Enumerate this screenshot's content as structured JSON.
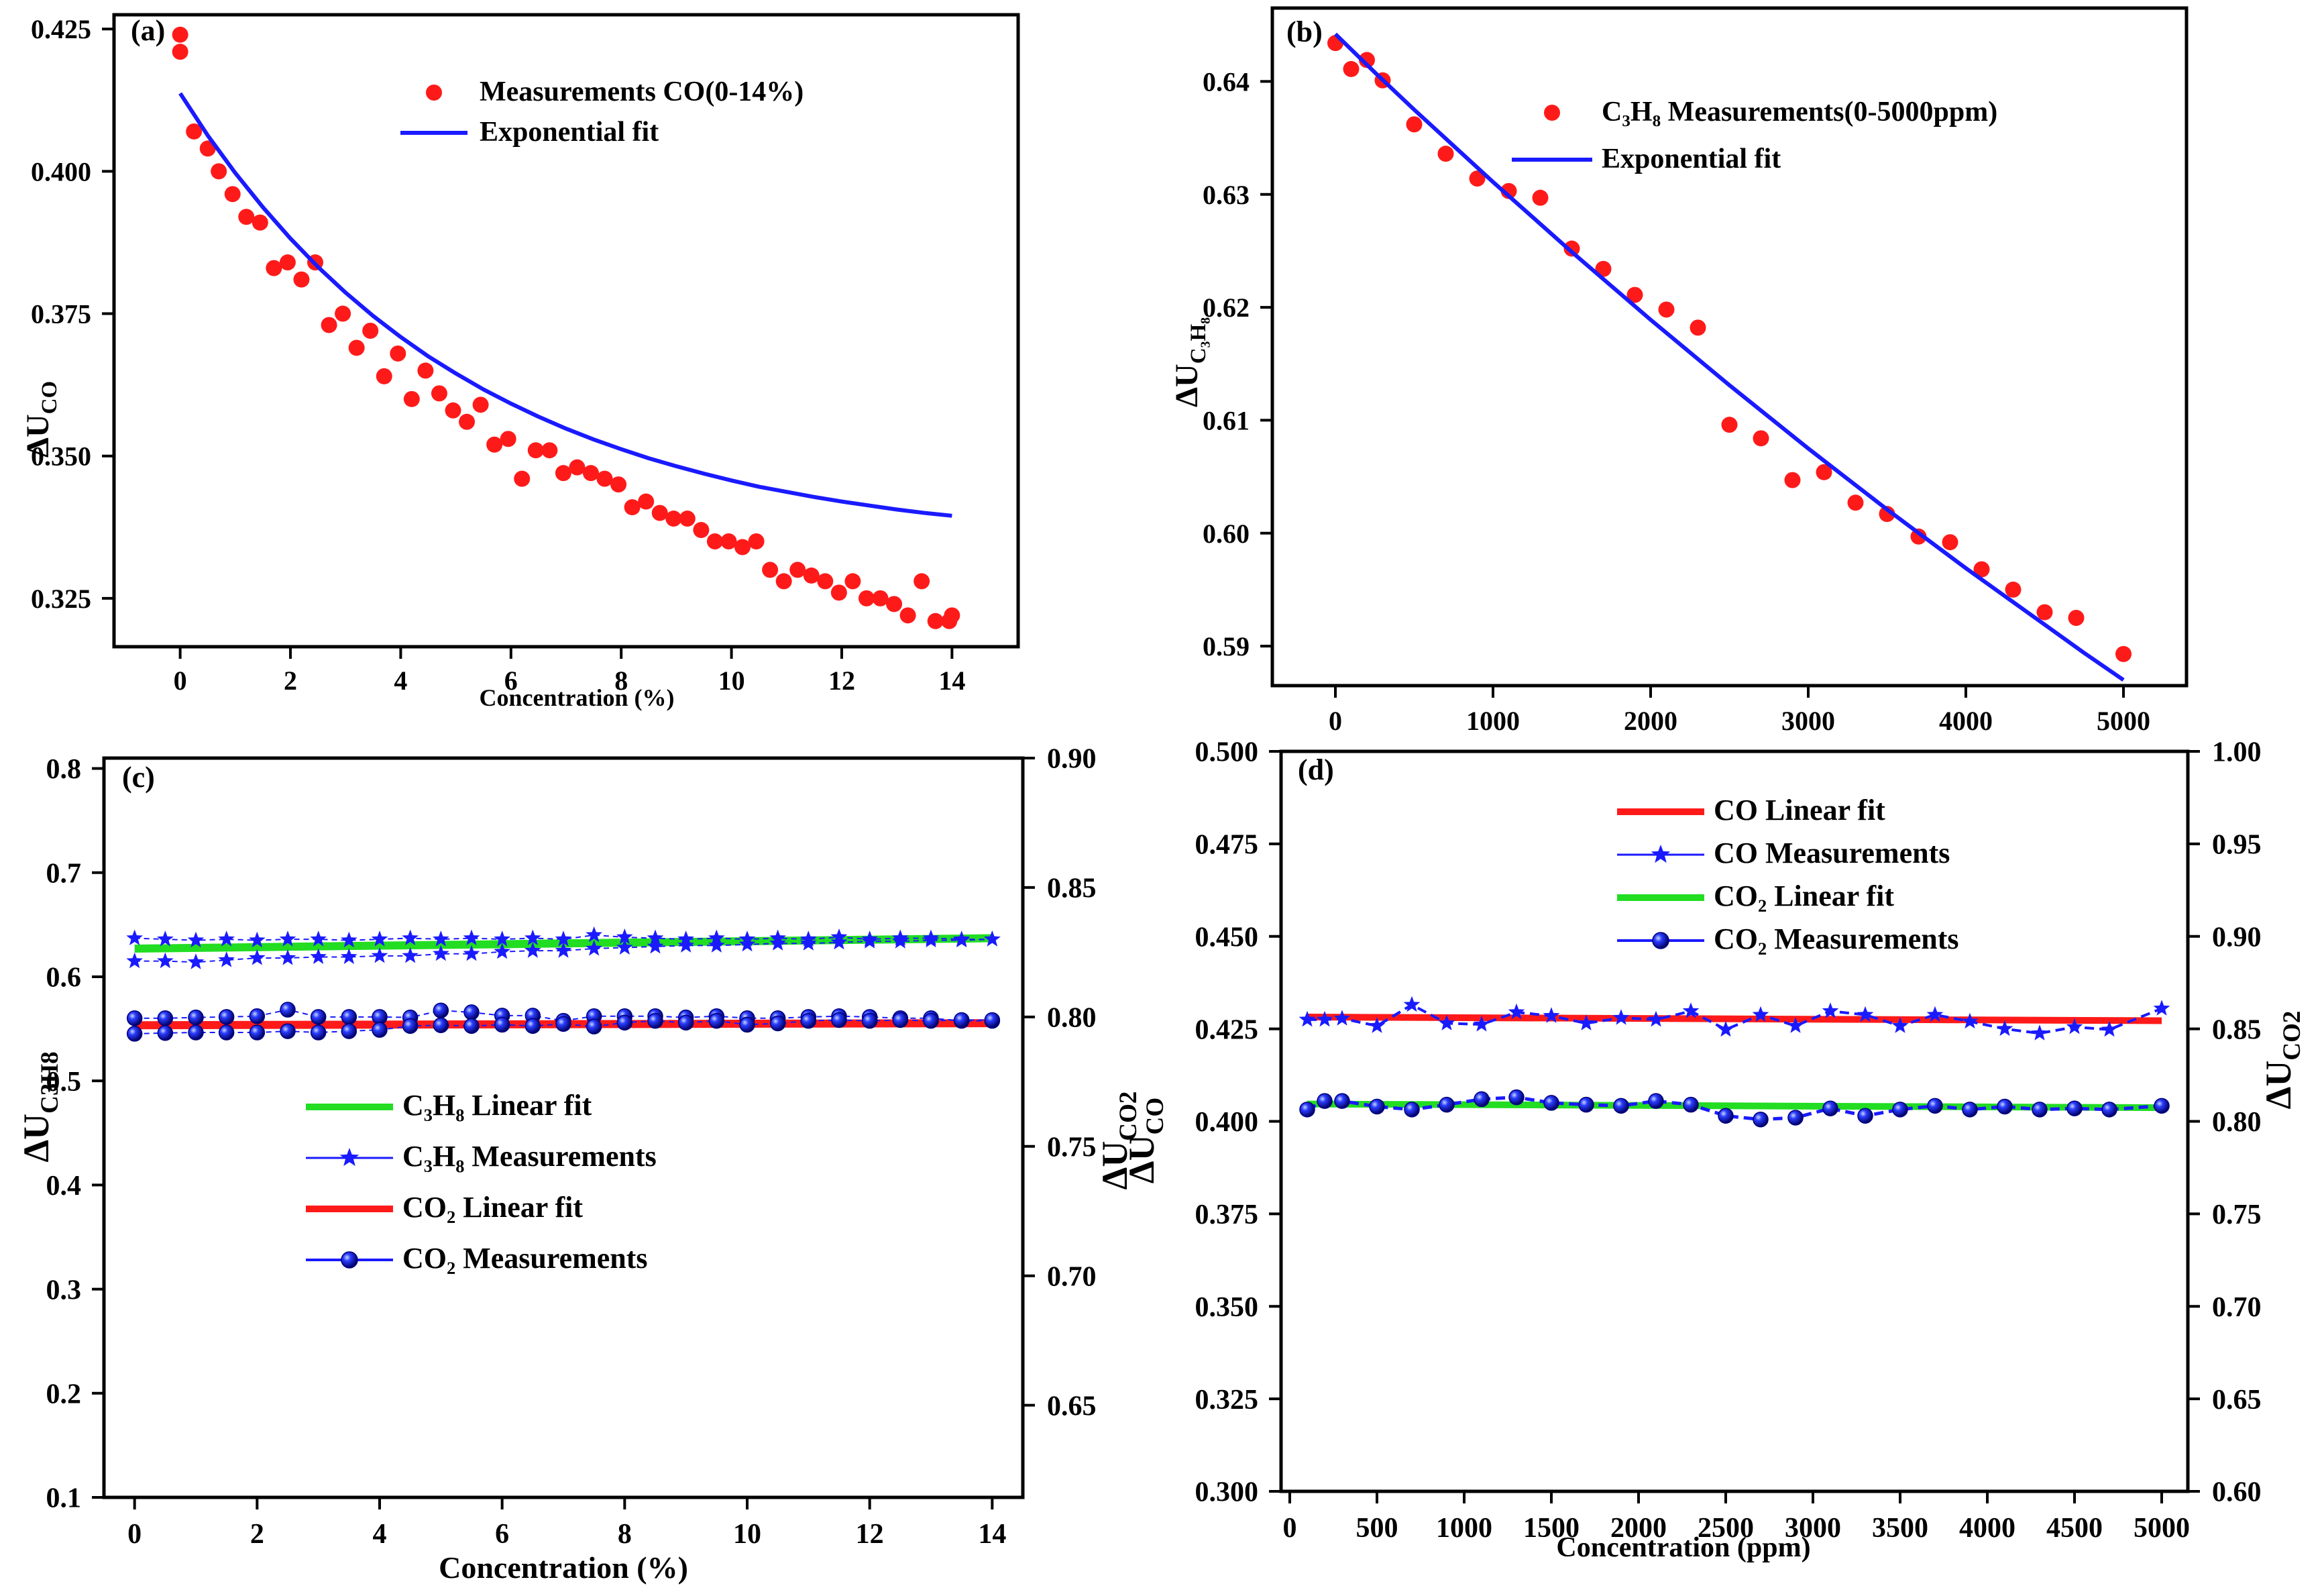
{
  "colors": {
    "red": "#ff1a1a",
    "blue": "#1a1aff",
    "green": "#22dd22",
    "navy": "#0000cc"
  },
  "chart_data": [
    {
      "panel": "(a)",
      "type": "scatter",
      "xlabel": "Concentration (%)",
      "ylabel": "ΔU",
      "ylabel_sub": "CO",
      "xlim": [
        -1.2,
        15.2
      ],
      "ylim": [
        0.3165,
        0.4275
      ],
      "xticks": [
        0,
        2,
        4,
        6,
        8,
        10,
        12,
        14
      ],
      "yticks": [
        0.325,
        0.35,
        0.375,
        0.4,
        0.425
      ],
      "ytick_labels": [
        "0.325",
        "0.350",
        "0.375",
        "0.400",
        "0.425"
      ],
      "legend": [
        {
          "label": "Measurements CO(0-14%)",
          "kind": "dot",
          "color": "#ff1a1a"
        },
        {
          "label": "Exponential fit",
          "kind": "line",
          "color": "#1a1aff"
        }
      ],
      "series": [
        {
          "name": "Measurements CO(0-14%)",
          "kind": "scatter",
          "color": "#ff1a1a",
          "x": [
            0,
            0,
            0.25,
            0.5,
            0.7,
            0.95,
            1.2,
            1.45,
            1.7,
            1.95,
            2.2,
            2.45,
            2.7,
            2.95,
            3.2,
            3.45,
            3.7,
            3.95,
            4.2,
            4.45,
            4.7,
            4.95,
            5.2,
            5.45,
            5.7,
            5.95,
            6.2,
            6.45,
            6.7,
            6.95,
            7.2,
            7.45,
            7.7,
            7.95,
            8.2,
            8.45,
            8.7,
            8.95,
            9.2,
            9.45,
            9.7,
            9.95,
            10.2,
            10.45,
            10.7,
            10.95,
            11.2,
            11.45,
            11.7,
            11.95,
            12.2,
            12.45,
            12.7,
            12.95,
            13.2,
            13.45,
            13.7,
            13.95,
            14
          ],
          "y": [
            0.424,
            0.421,
            0.407,
            0.404,
            0.4,
            0.396,
            0.392,
            0.391,
            0.383,
            0.384,
            0.381,
            0.384,
            0.373,
            0.375,
            0.369,
            0.372,
            0.364,
            0.368,
            0.36,
            0.365,
            0.361,
            0.358,
            0.356,
            0.359,
            0.352,
            0.353,
            0.346,
            0.351,
            0.351,
            0.347,
            0.348,
            0.347,
            0.346,
            0.345,
            0.341,
            0.342,
            0.34,
            0.339,
            0.339,
            0.337,
            0.335,
            0.335,
            0.334,
            0.335,
            0.33,
            0.328,
            0.33,
            0.329,
            0.328,
            0.326,
            0.328,
            0.325,
            0.325,
            0.324,
            0.322,
            0.328,
            0.321,
            0.321,
            0.322
          ]
        },
        {
          "name": "Exponential fit",
          "kind": "line",
          "color": "#1a1aff",
          "x": [
            0,
            0.5,
            1,
            1.5,
            2,
            2.5,
            3,
            3.5,
            4,
            4.5,
            5,
            5.5,
            6,
            6.5,
            7,
            7.5,
            8,
            8.5,
            9,
            9.5,
            10,
            10.5,
            11,
            11.5,
            12,
            12.5,
            13,
            13.5,
            14
          ],
          "y": [
            0.4137,
            0.4063,
            0.3997,
            0.3937,
            0.3882,
            0.3832,
            0.3787,
            0.3746,
            0.3709,
            0.3675,
            0.3645,
            0.3617,
            0.3592,
            0.3569,
            0.3548,
            0.3529,
            0.3512,
            0.3496,
            0.3482,
            0.3469,
            0.3457,
            0.3446,
            0.3437,
            0.3428,
            0.342,
            0.3413,
            0.3406,
            0.34,
            0.3395
          ]
        }
      ]
    },
    {
      "panel": "(b)",
      "type": "scatter",
      "xlabel": "",
      "ylabel": "ΔU",
      "ylabel_sub": "C₃H₈",
      "xlim": [
        -400,
        5400
      ],
      "ylim": [
        0.5865,
        0.6465
      ],
      "xticks": [
        0,
        1000,
        2000,
        3000,
        4000,
        5000
      ],
      "yticks": [
        0.59,
        0.6,
        0.61,
        0.62,
        0.63,
        0.64
      ],
      "ytick_labels": [
        "0.59",
        "0.60",
        "0.61",
        "0.62",
        "0.63",
        "0.64"
      ],
      "legend": [
        {
          "label": "C₃H₈ Measurements(0-5000ppm)",
          "kind": "dot",
          "color": "#ff1a1a"
        },
        {
          "label": "Exponential fit",
          "kind": "line",
          "color": "#1a1aff"
        }
      ],
      "series": [
        {
          "name": "C₃H₈ Measurements(0-5000ppm)",
          "kind": "scatter",
          "color": "#ff1a1a",
          "x": [
            0,
            100,
            200,
            300,
            500,
            700,
            900,
            1100,
            1300,
            1500,
            1700,
            1900,
            2100,
            2300,
            2500,
            2700,
            2900,
            3100,
            3300,
            3500,
            3700,
            3900,
            4100,
            4300,
            4500,
            4700,
            5000
          ],
          "y": [
            0.6434,
            0.6411,
            0.6419,
            0.6401,
            0.6362,
            0.6336,
            0.6314,
            0.6303,
            0.6297,
            0.6252,
            0.6234,
            0.6211,
            0.6198,
            0.6182,
            0.6096,
            0.6084,
            0.6047,
            0.6054,
            0.6027,
            0.6017,
            0.5997,
            0.5992,
            0.5968,
            0.595,
            0.593,
            0.5925,
            0.5893
          ]
        },
        {
          "name": "Exponential fit",
          "kind": "line",
          "color": "#1a1aff",
          "x": [
            0,
            250,
            500,
            750,
            1000,
            1250,
            1500,
            1750,
            2000,
            2250,
            2500,
            2750,
            3000,
            3250,
            3500,
            3750,
            4000,
            4250,
            4500,
            4750,
            5000
          ],
          "y": [
            0.6442,
            0.6408,
            0.6375,
            0.6343,
            0.6311,
            0.628,
            0.6249,
            0.6219,
            0.6189,
            0.616,
            0.6131,
            0.6103,
            0.6075,
            0.6048,
            0.6021,
            0.5995,
            0.5969,
            0.5944,
            0.5919,
            0.5894,
            0.587
          ]
        }
      ]
    },
    {
      "panel": "(c)",
      "type": "line",
      "xlabel": "Concentration (%)",
      "ylabel": "ΔU",
      "ylabel_sub": "C3H8",
      "y2label": "ΔU",
      "y2label_sub": "CO2",
      "xlim": [
        -0.5,
        14.5
      ],
      "ylim": [
        0.1,
        0.81
      ],
      "y2lim": [
        0.6144,
        0.9
      ],
      "xticks": [
        0,
        2,
        4,
        6,
        8,
        10,
        12,
        14
      ],
      "yticks": [
        0.1,
        0.2,
        0.3,
        0.4,
        0.5,
        0.6,
        0.7,
        0.8
      ],
      "ytick_labels": [
        "0.1",
        "0.2",
        "0.3",
        "0.4",
        "0.5",
        "0.6",
        "0.7",
        "0.8"
      ],
      "y2ticks": [
        0.65,
        0.7,
        0.75,
        0.8,
        0.85,
        0.9
      ],
      "y2tick_labels": [
        "0.65",
        "0.70",
        "0.75",
        "0.80",
        "0.85",
        "0.90"
      ],
      "legend": [
        {
          "label": "C₃H₈ Linear fit",
          "kind": "line",
          "color": "#22dd22"
        },
        {
          "label": "C₃H₈ Measurements",
          "kind": "star",
          "color": "#1a1aff"
        },
        {
          "label": "CO₂ Linear fit",
          "kind": "line",
          "color": "#ff1a1a"
        },
        {
          "label": "CO₂ Measurements",
          "kind": "ball",
          "color": "#1a1aff"
        }
      ],
      "series": [
        {
          "name": "C₃H₈ Linear fit",
          "kind": "line",
          "axis": "y",
          "color": "#22dd22",
          "width": 12,
          "x": [
            0,
            14
          ],
          "y": [
            0.627,
            0.637
          ]
        },
        {
          "name": "CO₂ Linear fit",
          "kind": "line",
          "axis": "y2",
          "color": "#ff1a1a",
          "width": 12,
          "x": [
            0,
            14
          ],
          "y": [
            0.7968,
            0.7976
          ]
        },
        {
          "name": "C₃H₈ Measurements",
          "kind": "star",
          "axis": "y",
          "color": "#1a1aff",
          "x": [
            0,
            0.5,
            1,
            1.5,
            2,
            2.5,
            3,
            3.5,
            4,
            4.5,
            5,
            5.5,
            6,
            6.5,
            7,
            7.5,
            8,
            8.5,
            9,
            9.5,
            10,
            10.5,
            11,
            11.5,
            12,
            12.5,
            13,
            13.5,
            14
          ],
          "y": [
            0.637,
            0.636,
            0.635,
            0.636,
            0.635,
            0.636,
            0.636,
            0.635,
            0.636,
            0.637,
            0.636,
            0.637,
            0.636,
            0.637,
            0.636,
            0.64,
            0.638,
            0.637,
            0.636,
            0.637,
            0.636,
            0.637,
            0.636,
            0.638,
            0.636,
            0.637,
            0.637,
            0.636,
            0.636
          ]
        },
        {
          "name": "C₃H₈ Measurements",
          "kind": "star",
          "axis": "y",
          "color": "#1a1aff",
          "x": [
            0,
            0.5,
            1,
            1.5,
            2,
            2.5,
            3,
            3.5,
            4,
            4.5,
            5,
            5.5,
            6,
            6.5,
            7,
            7.5,
            8,
            8.5,
            9,
            9.5,
            10,
            10.5,
            11,
            11.5,
            12,
            12.5,
            13,
            13.5,
            14
          ],
          "y": [
            0.615,
            0.615,
            0.614,
            0.616,
            0.618,
            0.618,
            0.619,
            0.619,
            0.62,
            0.62,
            0.622,
            0.622,
            0.624,
            0.625,
            0.625,
            0.627,
            0.628,
            0.629,
            0.63,
            0.63,
            0.631,
            0.632,
            0.632,
            0.633,
            0.634,
            0.634,
            0.635,
            0.635,
            0.636
          ]
        },
        {
          "name": "CO₂ Measurements",
          "kind": "ball",
          "axis": "y2",
          "color": "#1a1aff",
          "x": [
            0,
            0.5,
            1,
            1.5,
            2,
            2.5,
            3,
            3.5,
            4,
            4.5,
            5,
            5.5,
            6,
            6.5,
            7,
            7.5,
            8,
            8.5,
            9,
            9.5,
            10,
            10.5,
            11,
            11.5,
            12,
            12.5,
            13,
            13.5,
            14
          ],
          "y": [
            0.7995,
            0.7995,
            0.7998,
            0.8,
            0.8003,
            0.8028,
            0.8,
            0.8,
            0.8,
            0.7998,
            0.8025,
            0.8018,
            0.8005,
            0.8005,
            0.7985,
            0.8003,
            0.8003,
            0.8003,
            0.7998,
            0.8003,
            0.7995,
            0.7995,
            0.8,
            0.8003,
            0.8,
            0.7995,
            0.7995,
            0.7985,
            0.7985
          ]
        },
        {
          "name": "CO₂ Measurements",
          "kind": "ball",
          "axis": "y2",
          "color": "#1a1aff",
          "x": [
            0,
            0.5,
            1,
            1.5,
            2,
            2.5,
            3,
            3.5,
            4,
            4.5,
            5,
            5.5,
            6,
            6.5,
            7,
            7.5,
            8,
            8.5,
            9,
            9.5,
            10,
            10.5,
            11,
            11.5,
            12,
            12.5,
            13,
            13.5,
            14
          ],
          "y": [
            0.7935,
            0.7938,
            0.794,
            0.794,
            0.794,
            0.7945,
            0.794,
            0.7945,
            0.795,
            0.7965,
            0.7968,
            0.7965,
            0.797,
            0.7965,
            0.7973,
            0.7963,
            0.7978,
            0.7985,
            0.7978,
            0.7985,
            0.797,
            0.7975,
            0.7985,
            0.7988,
            0.7985,
            0.7988,
            0.7985,
            0.7988,
            0.7988
          ]
        }
      ]
    },
    {
      "panel": "(d)",
      "type": "line",
      "xlabel": "Concentration (ppm)",
      "ylabel": "ΔU",
      "ylabel_sub": "CO",
      "y2label": "ΔU",
      "y2label_sub": "CO2",
      "xlim": [
        -50,
        5150
      ],
      "ylim": [
        0.3,
        0.5
      ],
      "y2lim": [
        0.6,
        1.0
      ],
      "xticks": [
        0,
        500,
        1000,
        1500,
        2000,
        2500,
        3000,
        3500,
        4000,
        4500,
        5000
      ],
      "yticks": [
        0.3,
        0.325,
        0.35,
        0.375,
        0.4,
        0.425,
        0.45,
        0.475,
        0.5
      ],
      "ytick_labels": [
        "0.300",
        "0.325",
        "0.350",
        "0.375",
        "0.400",
        "0.425",
        "0.450",
        "0.475",
        "0.500"
      ],
      "y2ticks": [
        0.6,
        0.65,
        0.7,
        0.75,
        0.8,
        0.85,
        0.9,
        0.95,
        1.0
      ],
      "y2tick_labels": [
        "0.60",
        "0.65",
        "0.70",
        "0.75",
        "0.80",
        "0.85",
        "0.90",
        "0.95",
        "1.00"
      ],
      "legend": [
        {
          "label": "CO Linear fit",
          "kind": "line",
          "color": "#ff1a1a"
        },
        {
          "label": "CO Measurements",
          "kind": "star",
          "color": "#1a1aff"
        },
        {
          "label": "CO₂ Linear fit",
          "kind": "line",
          "color": "#22dd22"
        },
        {
          "label": "CO₂ Measurements",
          "kind": "ball",
          "color": "#1a1aff"
        }
      ],
      "series": [
        {
          "name": "CO Linear fit",
          "kind": "line",
          "axis": "y",
          "color": "#ff1a1a",
          "width": 10,
          "x": [
            100,
            5000
          ],
          "y": [
            0.4282,
            0.4272
          ]
        },
        {
          "name": "CO₂ Linear fit",
          "kind": "line",
          "axis": "y",
          "color": "#22dd22",
          "width": 10,
          "x": [
            100,
            5000
          ],
          "y": [
            0.4047,
            0.4037
          ]
        },
        {
          "name": "CO Measurements",
          "kind": "star",
          "axis": "y",
          "color": "#1a1aff",
          "x": [
            100,
            200,
            300,
            500,
            700,
            900,
            1100,
            1300,
            1500,
            1700,
            1900,
            2100,
            2300,
            2500,
            2700,
            2900,
            3100,
            3300,
            3500,
            3700,
            3900,
            4100,
            4300,
            4500,
            4700,
            5000
          ],
          "y": [
            0.4275,
            0.4275,
            0.4278,
            0.4258,
            0.4315,
            0.4265,
            0.4262,
            0.4295,
            0.4285,
            0.4265,
            0.428,
            0.4275,
            0.4298,
            0.4248,
            0.4288,
            0.4258,
            0.4298,
            0.4288,
            0.4258,
            0.4288,
            0.427,
            0.425,
            0.4238,
            0.4255,
            0.4248,
            0.4305
          ]
        },
        {
          "name": "CO₂ Measurements",
          "kind": "ball",
          "axis": "y",
          "color": "#1a1aff",
          "x": [
            100,
            200,
            300,
            500,
            700,
            900,
            1100,
            1300,
            1500,
            1700,
            1900,
            2100,
            2300,
            2500,
            2700,
            2900,
            3100,
            3300,
            3500,
            3700,
            3900,
            4100,
            4300,
            4500,
            4700,
            5000
          ],
          "y": [
            0.4032,
            0.4055,
            0.4055,
            0.404,
            0.4032,
            0.4045,
            0.406,
            0.4065,
            0.405,
            0.4045,
            0.4042,
            0.4055,
            0.4045,
            0.4015,
            0.4005,
            0.401,
            0.4035,
            0.4015,
            0.4032,
            0.4042,
            0.4032,
            0.404,
            0.4032,
            0.4035,
            0.4032,
            0.4042
          ]
        }
      ]
    }
  ]
}
